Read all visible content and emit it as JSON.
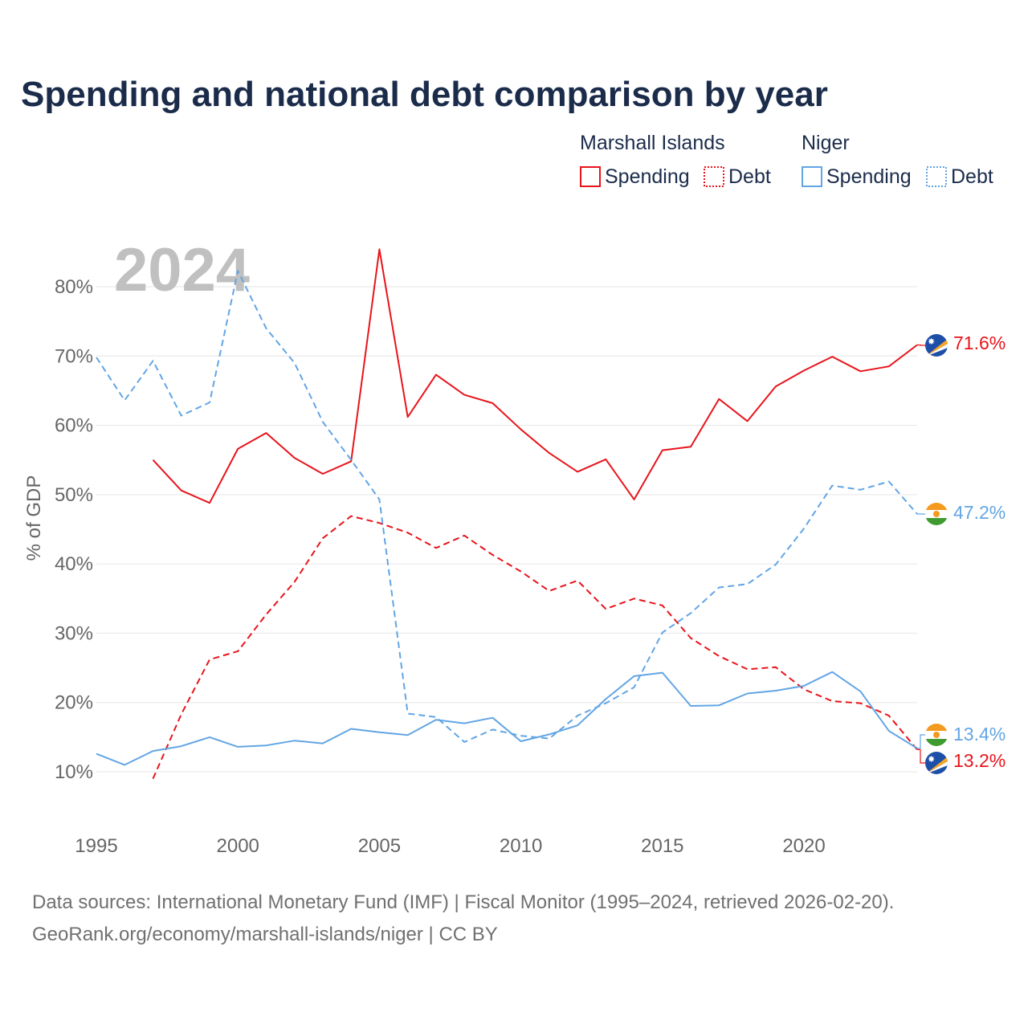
{
  "title": "Spending and national debt comparison by year",
  "year_label": "2024",
  "legend": {
    "groups": [
      {
        "country": "Marshall Islands",
        "spending_label": "Spending",
        "debt_label": "Debt",
        "color": "#e8141b"
      },
      {
        "country": "Niger",
        "spending_label": "Spending",
        "debt_label": "Debt",
        "color": "#62a5e4"
      }
    ]
  },
  "source_line1": "Data sources: International Monetary Fund (IMF) | Fiscal Monitor (1995–2024, retrieved 2026-02-20).",
  "source_line2": "GeoRank.org/economy/marshall-islands/niger | CC BY",
  "end_labels": {
    "mh_spending": "71.6%",
    "ne_debt": "47.2%",
    "ne_spending": "13.4%",
    "mh_debt": "13.2%"
  },
  "flags": {
    "mh": {
      "name": "marshall-islands-flag-icon",
      "bg": "#1e4fa8",
      "stripe1": "#f5a623",
      "stripe2": "#ffffff"
    },
    "ne": {
      "name": "niger-flag-icon",
      "top": "#f39a1f",
      "mid": "#ffffff",
      "bottom": "#3f9a2f",
      "circle": "#f39a1f"
    }
  },
  "chart_data": {
    "type": "line",
    "title": "Spending and national debt comparison by year",
    "xlabel": "",
    "ylabel": "% of GDP",
    "xlim": [
      1995,
      2024
    ],
    "ylim": [
      3,
      88
    ],
    "yticks": [
      10,
      20,
      30,
      40,
      50,
      60,
      70,
      80
    ],
    "ytick_labels": [
      "10%",
      "20%",
      "30%",
      "40%",
      "50%",
      "60%",
      "70%",
      "80%"
    ],
    "xticks": [
      1995,
      2000,
      2005,
      2010,
      2015,
      2020
    ],
    "xtick_labels": [
      "1995",
      "2000",
      "2005",
      "2010",
      "2015",
      "2020"
    ],
    "grid": true,
    "legend_position": "top-right",
    "series": [
      {
        "name": "Marshall Islands Spending",
        "color": "#e8141b",
        "dash": "solid",
        "x": [
          1997,
          1998,
          1999,
          2000,
          2001,
          2002,
          2003,
          2004,
          2005,
          2006,
          2007,
          2008,
          2009,
          2010,
          2011,
          2012,
          2013,
          2014,
          2015,
          2016,
          2017,
          2018,
          2019,
          2020,
          2021,
          2022,
          2023,
          2024
        ],
        "values": [
          55.0,
          50.6,
          48.8,
          56.6,
          58.9,
          55.3,
          53.0,
          54.8,
          85.4,
          61.2,
          67.3,
          64.4,
          63.2,
          59.4,
          56.0,
          53.3,
          55.1,
          49.3,
          56.4,
          56.9,
          63.8,
          60.6,
          65.6,
          67.9,
          69.9,
          67.8,
          68.5,
          71.6
        ]
      },
      {
        "name": "Marshall Islands Debt",
        "color": "#e8141b",
        "dash": "dashed",
        "x": [
          1997,
          1998,
          1999,
          2000,
          2001,
          2002,
          2003,
          2004,
          2005,
          2006,
          2007,
          2008,
          2009,
          2010,
          2011,
          2012,
          2013,
          2014,
          2015,
          2016,
          2017,
          2018,
          2019,
          2020,
          2021,
          2022,
          2023,
          2024
        ],
        "values": [
          9.0,
          18.3,
          26.2,
          27.4,
          32.7,
          37.4,
          43.7,
          46.9,
          45.9,
          44.5,
          42.3,
          44.1,
          41.3,
          38.9,
          36.1,
          37.6,
          33.5,
          35.0,
          34.0,
          29.3,
          26.7,
          24.8,
          25.1,
          21.9,
          20.2,
          19.9,
          18.1,
          13.2
        ]
      },
      {
        "name": "Niger Spending",
        "color": "#62a5e4",
        "dash": "solid",
        "x": [
          1995,
          1996,
          1997,
          1998,
          1999,
          2000,
          2001,
          2002,
          2003,
          2004,
          2005,
          2006,
          2007,
          2008,
          2009,
          2010,
          2011,
          2012,
          2013,
          2014,
          2015,
          2016,
          2017,
          2018,
          2019,
          2020,
          2021,
          2022,
          2023,
          2024
        ],
        "values": [
          12.6,
          11.0,
          13.0,
          13.7,
          15.0,
          13.6,
          13.8,
          14.5,
          14.1,
          16.2,
          15.7,
          15.3,
          17.5,
          17.0,
          17.8,
          14.4,
          15.4,
          16.7,
          20.5,
          23.8,
          24.3,
          19.5,
          19.6,
          21.3,
          21.7,
          22.4,
          24.4,
          21.6,
          15.9,
          13.4
        ]
      },
      {
        "name": "Niger Debt",
        "color": "#62a5e4",
        "dash": "dashed",
        "x": [
          1995,
          1996,
          1997,
          1998,
          1999,
          2000,
          2001,
          2002,
          2003,
          2004,
          2005,
          2006,
          2007,
          2008,
          2009,
          2010,
          2011,
          2012,
          2013,
          2014,
          2015,
          2016,
          2017,
          2018,
          2019,
          2020,
          2021,
          2022,
          2023,
          2024
        ],
        "values": [
          69.8,
          63.6,
          69.3,
          61.4,
          63.3,
          82.3,
          74.0,
          69.0,
          60.5,
          55.0,
          49.3,
          18.4,
          17.9,
          14.3,
          16.1,
          15.2,
          14.8,
          18.1,
          19.9,
          22.2,
          30.1,
          32.9,
          36.6,
          37.1,
          39.9,
          45.1,
          51.3,
          50.7,
          51.9,
          47.2
        ]
      }
    ]
  }
}
